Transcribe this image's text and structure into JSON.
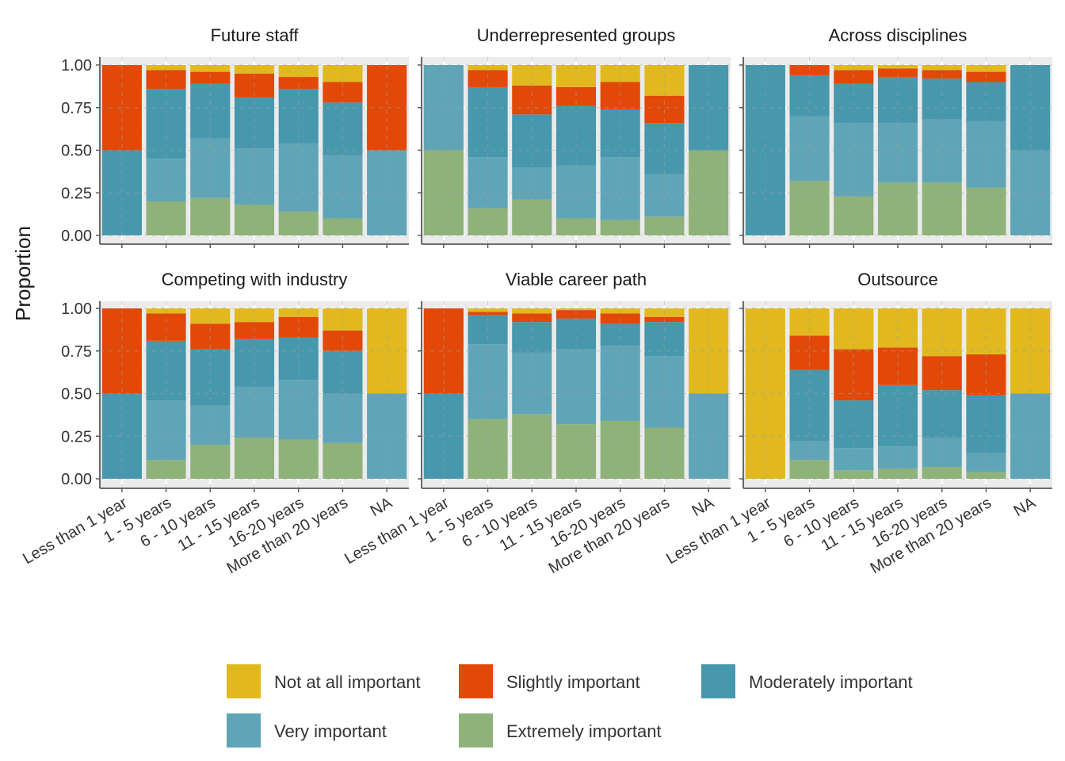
{
  "chart_data": {
    "type": "bar",
    "stacked": true,
    "ylabel": "Proportion",
    "xlabel": "",
    "ylim": [
      0,
      1
    ],
    "yticks": [
      "0.00",
      "0.25",
      "0.50",
      "0.75",
      "1.00"
    ],
    "categories": [
      "Less than 1 year",
      "1 - 5 years",
      "6 - 10 years",
      "11 - 15 years",
      "16-20 years",
      "More than 20 years",
      "NA"
    ],
    "levels": [
      "Not at all important",
      "Slightly important",
      "Moderately important",
      "Very important",
      "Extremely important"
    ],
    "colors": {
      "Not at all important": "#E1B91E",
      "Slightly important": "#E24807",
      "Moderately important": "#4797AD",
      "Very important": "#5FA5B7",
      "Extremely important": "#8FB27B"
    },
    "legend_position": "bottom",
    "grid": true,
    "facets": [
      {
        "title": "Future staff",
        "values": {
          "Less than 1 year": [
            0,
            0.5,
            0.5,
            0,
            0
          ],
          "1 - 5 years": [
            0.03,
            0.11,
            0.41,
            0.25,
            0.2
          ],
          "6 - 10 years": [
            0.04,
            0.07,
            0.32,
            0.35,
            0.22
          ],
          "11 - 15 years": [
            0.05,
            0.14,
            0.3,
            0.33,
            0.18
          ],
          "16-20 years": [
            0.07,
            0.07,
            0.32,
            0.4,
            0.14
          ],
          "More than 20 years": [
            0.1,
            0.12,
            0.31,
            0.37,
            0.1
          ],
          "NA": [
            0,
            0.5,
            0,
            0.5,
            0
          ]
        }
      },
      {
        "title": "Underrepresented groups",
        "values": {
          "Less than 1 year": [
            0,
            0,
            0,
            0.5,
            0.5
          ],
          "1 - 5 years": [
            0.03,
            0.1,
            0.41,
            0.3,
            0.16
          ],
          "6 - 10 years": [
            0.12,
            0.17,
            0.31,
            0.19,
            0.21
          ],
          "11 - 15 years": [
            0.13,
            0.11,
            0.35,
            0.31,
            0.1
          ],
          "16-20 years": [
            0.1,
            0.16,
            0.28,
            0.37,
            0.09
          ],
          "More than 20 years": [
            0.18,
            0.16,
            0.3,
            0.25,
            0.11
          ],
          "NA": [
            0,
            0,
            0.5,
            0,
            0.5
          ]
        }
      },
      {
        "title": "Across disciplines",
        "values": {
          "Less than 1 year": [
            0,
            0,
            1.0,
            0,
            0
          ],
          "1 - 5 years": [
            0,
            0.06,
            0.24,
            0.38,
            0.32
          ],
          "6 - 10 years": [
            0.03,
            0.08,
            0.23,
            0.43,
            0.23
          ],
          "11 - 15 years": [
            0.02,
            0.05,
            0.27,
            0.35,
            0.31
          ],
          "16-20 years": [
            0.03,
            0.05,
            0.24,
            0.37,
            0.31
          ],
          "More than 20 years": [
            0.04,
            0.06,
            0.23,
            0.39,
            0.28
          ],
          "NA": [
            0,
            0,
            0.5,
            0.5,
            0
          ]
        }
      },
      {
        "title": "Competing with industry",
        "values": {
          "Less than 1 year": [
            0,
            0.5,
            0.5,
            0,
            0
          ],
          "1 - 5 years": [
            0.03,
            0.16,
            0.35,
            0.35,
            0.11
          ],
          "6 - 10 years": [
            0.09,
            0.15,
            0.33,
            0.23,
            0.2
          ],
          "11 - 15 years": [
            0.08,
            0.1,
            0.28,
            0.3,
            0.24
          ],
          "16-20 years": [
            0.05,
            0.12,
            0.25,
            0.35,
            0.23
          ],
          "More than 20 years": [
            0.13,
            0.12,
            0.25,
            0.29,
            0.21
          ],
          "NA": [
            0.5,
            0,
            0,
            0.5,
            0
          ]
        }
      },
      {
        "title": "Viable career path",
        "values": {
          "Less than 1 year": [
            0,
            0.5,
            0.5,
            0,
            0
          ],
          "1 - 5 years": [
            0.02,
            0.02,
            0.17,
            0.44,
            0.35
          ],
          "6 - 10 years": [
            0.03,
            0.05,
            0.18,
            0.36,
            0.38
          ],
          "11 - 15 years": [
            0.01,
            0.05,
            0.18,
            0.44,
            0.32
          ],
          "16-20 years": [
            0.03,
            0.06,
            0.13,
            0.44,
            0.34
          ],
          "More than 20 years": [
            0.05,
            0.03,
            0.2,
            0.42,
            0.3
          ],
          "NA": [
            0.5,
            0,
            0,
            0.5,
            0
          ]
        }
      },
      {
        "title": "Outsource",
        "values": {
          "Less than 1 year": [
            1.0,
            0,
            0,
            0,
            0
          ],
          "1 - 5 years": [
            0.16,
            0.2,
            0.42,
            0.11,
            0.11
          ],
          "6 - 10 years": [
            0.24,
            0.3,
            0.28,
            0.13,
            0.05
          ],
          "11 - 15 years": [
            0.23,
            0.22,
            0.36,
            0.13,
            0.06
          ],
          "16-20 years": [
            0.28,
            0.2,
            0.28,
            0.17,
            0.07
          ],
          "More than 20 years": [
            0.27,
            0.24,
            0.34,
            0.11,
            0.04
          ],
          "NA": [
            0.5,
            0,
            0,
            0.5,
            0
          ]
        }
      }
    ]
  }
}
